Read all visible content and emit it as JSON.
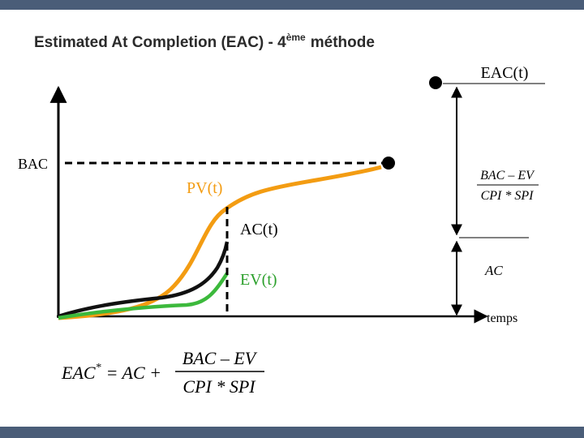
{
  "header": {
    "title": "Estimated At Completion (EAC) - 4",
    "title_superscript": "ème",
    "title_suffix": "méthode"
  },
  "diagram": {
    "labels": {
      "eac_t": "EAC(t)",
      "bac": "BAC",
      "pv_t": "PV(t)",
      "ac_t": "AC(t)",
      "ev_t": "EV(t)",
      "temps": "temps"
    },
    "side_fraction": {
      "numerator": "BAC – EV",
      "denominator": "CPI * SPI"
    },
    "side_ac": "AC"
  },
  "formula": {
    "lhs": "EAC",
    "superscript": "*",
    "middle": "= AC +",
    "numerator": "BAC – EV",
    "denominator": "CPI * SPI"
  }
}
